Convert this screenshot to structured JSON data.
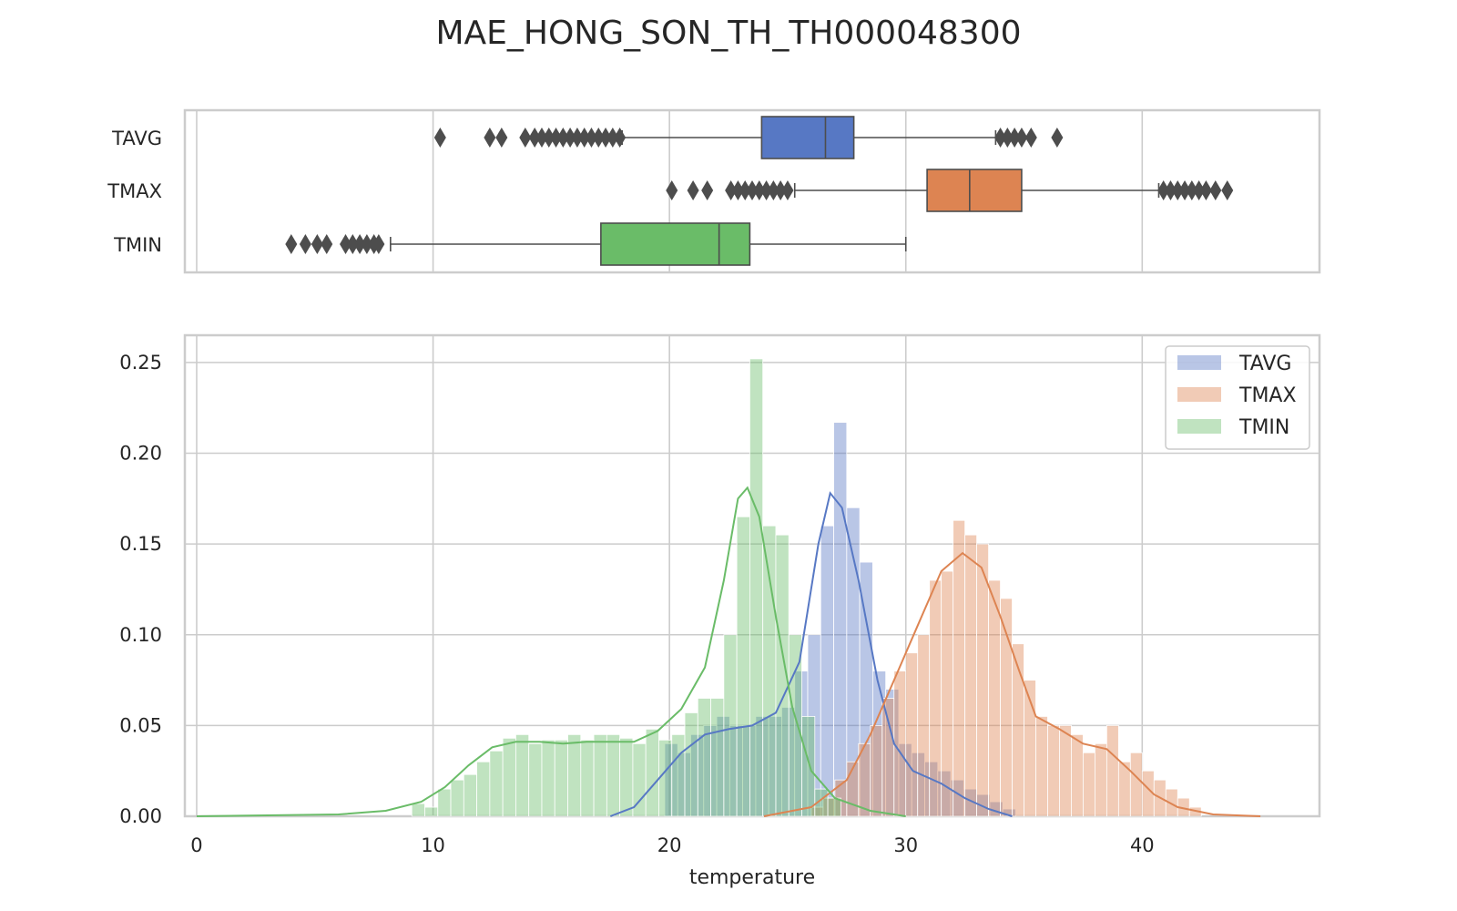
{
  "chart_data": [
    {
      "type": "box",
      "title": "MAE_HONG_SON_TH_TH000048300",
      "categories": [
        "TAVG",
        "TMAX",
        "TMIN"
      ],
      "xlim": [
        -0.5,
        47.5
      ],
      "grid": true,
      "boxes": [
        {
          "name": "TAVG",
          "color": "#5778c4",
          "whisker_low": 18.0,
          "q1": 23.9,
          "median": 26.6,
          "q3": 27.8,
          "whisker_high": 33.8,
          "outliers": [
            10.3,
            12.4,
            12.9,
            13.9,
            14.3,
            14.6,
            14.9,
            15.2,
            15.5,
            15.8,
            16.1,
            16.4,
            16.7,
            17.0,
            17.3,
            17.6,
            17.9,
            34.0,
            34.3,
            34.6,
            34.9,
            35.3,
            36.4
          ]
        },
        {
          "name": "TMAX",
          "color": "#dd8452",
          "whisker_low": 25.3,
          "q1": 30.9,
          "median": 32.7,
          "q3": 34.9,
          "whisker_high": 40.7,
          "outliers": [
            20.1,
            21.0,
            21.6,
            22.6,
            22.9,
            23.2,
            23.5,
            23.8,
            24.1,
            24.4,
            24.7,
            25.0,
            40.9,
            41.2,
            41.5,
            41.8,
            42.1,
            42.4,
            42.7,
            43.1,
            43.6
          ]
        },
        {
          "name": "TMIN",
          "color": "#6abc68",
          "whisker_low": 8.2,
          "q1": 17.1,
          "median": 22.1,
          "q3": 23.4,
          "whisker_high": 30.0,
          "outliers": [
            4.0,
            4.6,
            5.1,
            5.5,
            6.3,
            6.6,
            6.9,
            7.2,
            7.5,
            7.7
          ]
        }
      ]
    },
    {
      "type": "histogram",
      "xlabel": "temperature",
      "ylabel": "",
      "xlim": [
        -0.5,
        47.5
      ],
      "ylim": [
        0,
        0.265
      ],
      "xticks": [
        0,
        10,
        20,
        30,
        40
      ],
      "yticks": [
        0.0,
        0.05,
        0.1,
        0.15,
        0.2,
        0.25
      ],
      "ytick_labels": [
        "0.00",
        "0.05",
        "0.10",
        "0.15",
        "0.20",
        "0.25"
      ],
      "grid": true,
      "legend": {
        "position": "top-right",
        "entries": [
          "TAVG",
          "TMAX",
          "TMIN"
        ]
      },
      "series": [
        {
          "name": "TAVG",
          "color": "#5778c4",
          "bin_width": 0.55,
          "bins": [
            [
              19.8,
              0.04
            ],
            [
              20.35,
              0.035
            ],
            [
              20.9,
              0.045
            ],
            [
              21.45,
              0.05
            ],
            [
              22.0,
              0.055
            ],
            [
              22.55,
              0.05
            ],
            [
              23.1,
              0.05
            ],
            [
              23.65,
              0.055
            ],
            [
              24.2,
              0.055
            ],
            [
              24.75,
              0.06
            ],
            [
              25.3,
              0.08
            ],
            [
              25.85,
              0.1
            ],
            [
              26.4,
              0.16
            ],
            [
              26.95,
              0.217
            ],
            [
              27.5,
              0.17
            ],
            [
              28.05,
              0.14
            ],
            [
              28.6,
              0.08
            ],
            [
              29.15,
              0.07
            ],
            [
              29.7,
              0.04
            ],
            [
              30.25,
              0.035
            ],
            [
              30.8,
              0.03
            ],
            [
              31.35,
              0.025
            ],
            [
              31.9,
              0.02
            ],
            [
              32.45,
              0.015
            ],
            [
              33.0,
              0.012
            ],
            [
              33.55,
              0.008
            ],
            [
              34.1,
              0.004
            ]
          ],
          "kde": [
            [
              17.5,
              0.0
            ],
            [
              18.5,
              0.005
            ],
            [
              19.5,
              0.02
            ],
            [
              20.5,
              0.035
            ],
            [
              21.5,
              0.045
            ],
            [
              22.5,
              0.048
            ],
            [
              23.5,
              0.05
            ],
            [
              24.5,
              0.057
            ],
            [
              25.5,
              0.085
            ],
            [
              26.3,
              0.15
            ],
            [
              26.8,
              0.178
            ],
            [
              27.3,
              0.17
            ],
            [
              28.0,
              0.13
            ],
            [
              28.8,
              0.075
            ],
            [
              29.5,
              0.04
            ],
            [
              30.3,
              0.025
            ],
            [
              31.5,
              0.018
            ],
            [
              32.5,
              0.01
            ],
            [
              33.5,
              0.004
            ],
            [
              34.5,
              0.0
            ]
          ]
        },
        {
          "name": "TMAX",
          "color": "#dd8452",
          "bin_width": 0.5,
          "bins": [
            [
              26.0,
              0.005
            ],
            [
              26.5,
              0.01
            ],
            [
              27.0,
              0.02
            ],
            [
              27.5,
              0.03
            ],
            [
              28.0,
              0.04
            ],
            [
              28.5,
              0.05
            ],
            [
              29.0,
              0.065
            ],
            [
              29.5,
              0.08
            ],
            [
              30.0,
              0.09
            ],
            [
              30.5,
              0.1
            ],
            [
              31.0,
              0.13
            ],
            [
              31.5,
              0.135
            ],
            [
              32.0,
              0.163
            ],
            [
              32.5,
              0.155
            ],
            [
              33.0,
              0.15
            ],
            [
              33.5,
              0.13
            ],
            [
              34.0,
              0.12
            ],
            [
              34.5,
              0.095
            ],
            [
              35.0,
              0.075
            ],
            [
              35.5,
              0.055
            ],
            [
              36.0,
              0.05
            ],
            [
              36.5,
              0.05
            ],
            [
              37.0,
              0.045
            ],
            [
              37.5,
              0.035
            ],
            [
              38.0,
              0.04
            ],
            [
              38.5,
              0.05
            ],
            [
              39.0,
              0.03
            ],
            [
              39.5,
              0.035
            ],
            [
              40.0,
              0.025
            ],
            [
              40.5,
              0.02
            ],
            [
              41.0,
              0.015
            ],
            [
              41.5,
              0.01
            ],
            [
              42.0,
              0.005
            ]
          ],
          "kde": [
            [
              24.0,
              0.0
            ],
            [
              26.0,
              0.005
            ],
            [
              27.5,
              0.02
            ],
            [
              28.5,
              0.045
            ],
            [
              29.5,
              0.075
            ],
            [
              30.5,
              0.105
            ],
            [
              31.5,
              0.135
            ],
            [
              32.4,
              0.145
            ],
            [
              33.2,
              0.137
            ],
            [
              34.0,
              0.11
            ],
            [
              34.8,
              0.08
            ],
            [
              35.5,
              0.055
            ],
            [
              36.5,
              0.048
            ],
            [
              37.5,
              0.04
            ],
            [
              38.5,
              0.037
            ],
            [
              39.5,
              0.025
            ],
            [
              40.5,
              0.012
            ],
            [
              41.5,
              0.005
            ],
            [
              43.0,
              0.001
            ],
            [
              45.0,
              0.0
            ]
          ]
        },
        {
          "name": "TMIN",
          "color": "#6abc68",
          "bin_width": 0.55,
          "bins": [
            [
              9.1,
              0.007
            ],
            [
              9.65,
              0.005
            ],
            [
              10.2,
              0.015
            ],
            [
              10.75,
              0.02
            ],
            [
              11.3,
              0.023
            ],
            [
              11.85,
              0.03
            ],
            [
              12.4,
              0.036
            ],
            [
              12.95,
              0.043
            ],
            [
              13.5,
              0.045
            ],
            [
              14.05,
              0.04
            ],
            [
              14.6,
              0.042
            ],
            [
              15.15,
              0.042
            ],
            [
              15.7,
              0.045
            ],
            [
              16.25,
              0.042
            ],
            [
              16.8,
              0.045
            ],
            [
              17.35,
              0.045
            ],
            [
              17.9,
              0.043
            ],
            [
              18.45,
              0.04
            ],
            [
              19.0,
              0.048
            ],
            [
              19.55,
              0.042
            ],
            [
              20.1,
              0.045
            ],
            [
              20.65,
              0.057
            ],
            [
              21.2,
              0.065
            ],
            [
              21.75,
              0.065
            ],
            [
              22.3,
              0.1
            ],
            [
              22.85,
              0.165
            ],
            [
              23.4,
              0.252
            ],
            [
              23.95,
              0.16
            ],
            [
              24.5,
              0.155
            ],
            [
              25.05,
              0.1
            ],
            [
              25.6,
              0.055
            ],
            [
              26.15,
              0.015
            ],
            [
              26.7,
              0.01
            ]
          ],
          "kde": [
            [
              0.0,
              0.0
            ],
            [
              3.0,
              0.0005
            ],
            [
              6.0,
              0.001
            ],
            [
              8.0,
              0.003
            ],
            [
              9.5,
              0.008
            ],
            [
              10.5,
              0.016
            ],
            [
              11.5,
              0.028
            ],
            [
              12.5,
              0.038
            ],
            [
              13.5,
              0.041
            ],
            [
              14.5,
              0.041
            ],
            [
              15.5,
              0.04
            ],
            [
              16.5,
              0.041
            ],
            [
              17.5,
              0.041
            ],
            [
              18.5,
              0.041
            ],
            [
              19.5,
              0.047
            ],
            [
              20.5,
              0.059
            ],
            [
              21.5,
              0.082
            ],
            [
              22.3,
              0.13
            ],
            [
              22.9,
              0.175
            ],
            [
              23.3,
              0.181
            ],
            [
              23.8,
              0.165
            ],
            [
              24.5,
              0.11
            ],
            [
              25.2,
              0.06
            ],
            [
              26.0,
              0.025
            ],
            [
              27.0,
              0.01
            ],
            [
              28.5,
              0.003
            ],
            [
              30.0,
              0.0
            ]
          ]
        }
      ]
    }
  ]
}
